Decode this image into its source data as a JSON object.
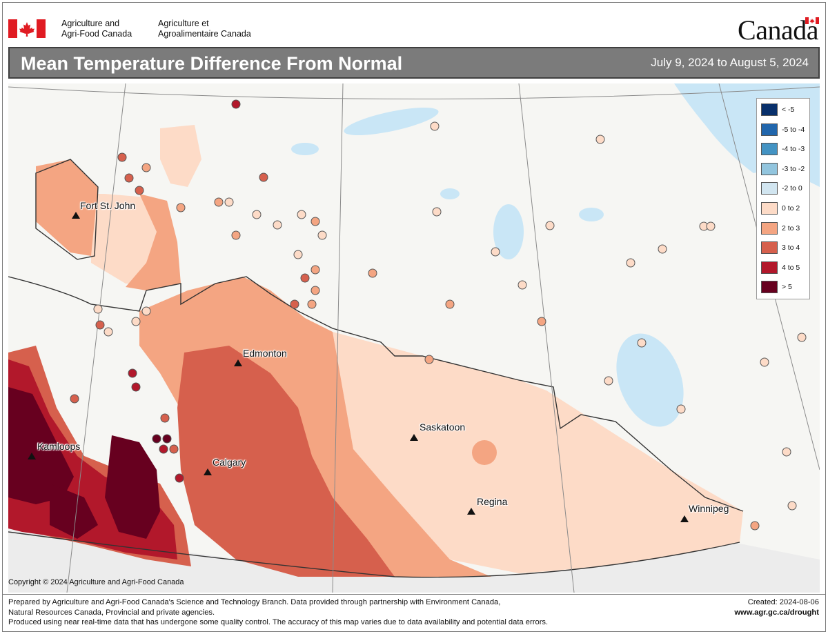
{
  "header": {
    "department_en": [
      "Agriculture and",
      "Agri-Food Canada"
    ],
    "department_fr": [
      "Agriculture et",
      "Agroalimentaire Canada"
    ],
    "wordmark": "Canada"
  },
  "titlebar": {
    "title": "Mean Temperature Difference From Normal",
    "date_range": "July 9, 2024 to August 5, 2024"
  },
  "map": {
    "cities": [
      {
        "name": "Fort St. John"
      },
      {
        "name": "Edmonton"
      },
      {
        "name": "Kamloops"
      },
      {
        "name": "Calgary"
      },
      {
        "name": "Saskatoon"
      },
      {
        "name": "Regina"
      },
      {
        "name": "Winnipeg"
      }
    ],
    "copyright": "Copyright © 2024 Agriculture and Agri-Food Canada"
  },
  "legend": {
    "items": [
      {
        "label": "< -5",
        "color": "#08306b"
      },
      {
        "label": "-5 to -4",
        "color": "#2166ac"
      },
      {
        "label": "-4 to -3",
        "color": "#4393c3"
      },
      {
        "label": "-3 to -2",
        "color": "#92c5de"
      },
      {
        "label": "-2 to 0",
        "color": "#d1e5f0"
      },
      {
        "label": "0 to 2",
        "color": "#fddbc7"
      },
      {
        "label": "2 to 3",
        "color": "#f4a582"
      },
      {
        "label": "3 to 4",
        "color": "#d6604d"
      },
      {
        "label": "4 to 5",
        "color": "#b2182b"
      },
      {
        "label": "> 5",
        "color": "#67001f"
      }
    ]
  },
  "footer": {
    "lines": [
      "Prepared by Agriculture and Agri-Food Canada's Science and Technology Branch. Data provided through partnership with Environment Canada,",
      "Natural Resources Canada, Provincial and private agencies.",
      "Produced using near real-time data that has undergone some quality control. The accuracy of this map varies due to data availability and potential data errors."
    ],
    "created": "Created: 2024-08-06",
    "url": "www.agr.gc.ca/drought"
  },
  "colors": {
    "title_bar": "#7b7b7b",
    "water": "#c9e6f6",
    "land": "#f5f5f2"
  }
}
